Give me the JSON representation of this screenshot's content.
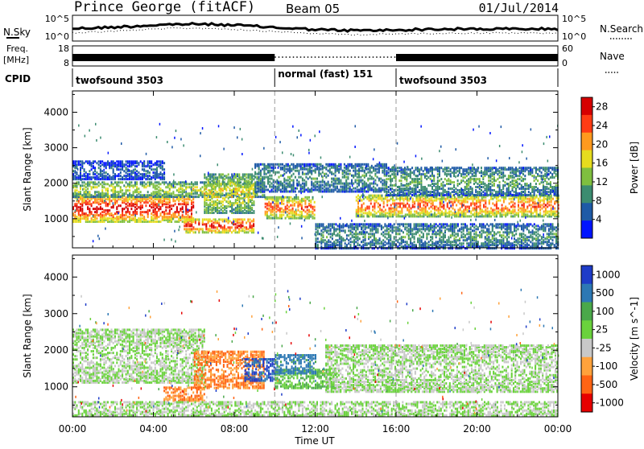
{
  "header": {
    "station": "Prince George (fitACF)",
    "beam": "Beam 05",
    "date": "01/Jul/2014"
  },
  "top_panels": {
    "nsky_label": "N.Sky",
    "nsky_ticks": [
      "10^5",
      "10^0"
    ],
    "nsearch_label": "N.Search",
    "nsearch_ticks": [
      "10^5",
      "10^0"
    ],
    "freq_label_1": "Freq.",
    "freq_label_2": "[MHz]",
    "freq_ticks": [
      "18",
      "8"
    ],
    "nave_label": "Nave",
    "nave_ticks": [
      "60",
      "0"
    ],
    "cpid_label": "CPID",
    "cpid_segments": [
      {
        "label": "twofsound 3503",
        "start_h": 0,
        "end_h": 10
      },
      {
        "label": "normal (fast) 151",
        "start_h": 10,
        "end_h": 16
      },
      {
        "label": "twofsound 3503",
        "start_h": 16,
        "end_h": 24
      }
    ]
  },
  "chart_data": [
    {
      "type": "heatmap",
      "title": "",
      "xlabel": "Time UT",
      "ylabel": "Slant Range [km]",
      "xlim": [
        0,
        24
      ],
      "ylim": [
        180,
        4600
      ],
      "x_ticks": [
        "00:00",
        "04:00",
        "08:00",
        "12:00",
        "16:00",
        "20:00",
        "00:00"
      ],
      "x_tick_hours": [
        0,
        4,
        8,
        12,
        16,
        20,
        24
      ],
      "y_ticks": [
        "1000",
        "2000",
        "3000",
        "4000"
      ],
      "y_tick_values": [
        1000,
        2000,
        3000,
        4000
      ],
      "colorbar": {
        "label": "Power [dB]",
        "ticks": [
          "4",
          "8",
          "12",
          "16",
          "20",
          "24",
          "28"
        ],
        "tick_values": [
          4,
          8,
          12,
          16,
          20,
          24,
          28
        ],
        "range": [
          0,
          30
        ],
        "colors": [
          "#0014ff",
          "#1e5aa6",
          "#3c8c70",
          "#7fbf3f",
          "#e6dc1e",
          "#ff9a1e",
          "#ff3c14",
          "#d60000"
        ]
      },
      "bands": [
        {
          "h0": 0.0,
          "h1": 6.0,
          "r0": 950,
          "r1": 1700,
          "value": 26
        },
        {
          "h0": 0.0,
          "h1": 9.5,
          "r0": 1650,
          "r1": 2100,
          "value": 14
        },
        {
          "h0": 0.0,
          "h1": 4.5,
          "r0": 2150,
          "r1": 2650,
          "value": 6
        },
        {
          "h0": 5.5,
          "h1": 9.0,
          "r0": 650,
          "r1": 1050,
          "value": 25
        },
        {
          "h0": 6.5,
          "h1": 9.0,
          "r0": 1200,
          "r1": 2300,
          "value": 16
        },
        {
          "h0": 9.5,
          "h1": 12.0,
          "r0": 1050,
          "r1": 1650,
          "value": 22
        },
        {
          "h0": 9.0,
          "h1": 15.5,
          "r0": 1800,
          "r1": 2600,
          "value": 9
        },
        {
          "h0": 14.0,
          "h1": 24.0,
          "r0": 1100,
          "r1": 1700,
          "value": 22
        },
        {
          "h0": 15.5,
          "h1": 24.0,
          "r0": 1700,
          "r1": 2500,
          "value": 10
        },
        {
          "h0": 12.0,
          "h1": 24.0,
          "r0": 200,
          "r1": 900,
          "value": 9
        }
      ]
    },
    {
      "type": "heatmap",
      "title": "",
      "xlabel": "Time UT",
      "ylabel": "Slant Range [km]",
      "xlim": [
        0,
        24
      ],
      "ylim": [
        180,
        4600
      ],
      "x_ticks": [
        "00:00",
        "04:00",
        "08:00",
        "12:00",
        "16:00",
        "20:00",
        "00:00"
      ],
      "x_tick_hours": [
        0,
        4,
        8,
        12,
        16,
        20,
        24
      ],
      "y_ticks": [
        "1000",
        "2000",
        "3000",
        "4000"
      ],
      "y_tick_values": [
        1000,
        2000,
        3000,
        4000
      ],
      "colorbar": {
        "label": "Velocity [m s^-1]",
        "ticks": [
          "1000",
          "500",
          "100",
          "25",
          "-25",
          "-100",
          "-500",
          "-1000"
        ],
        "colors": [
          "#1e3cc8",
          "#2d78b4",
          "#4aa84a",
          "#6ad23c",
          "#c8c8c8",
          "#ffa23c",
          "#ff6414",
          "#e60000"
        ]
      },
      "bands": [
        {
          "h0": 0.0,
          "h1": 6.5,
          "r0": 1150,
          "r1": 2600,
          "value": 0
        },
        {
          "h0": 6.0,
          "h1": 9.5,
          "r0": 1000,
          "r1": 2000,
          "value": -300
        },
        {
          "h0": 8.5,
          "h1": 10.0,
          "r0": 1200,
          "r1": 1800,
          "value": 800
        },
        {
          "h0": 10.0,
          "h1": 13.0,
          "r0": 1000,
          "r1": 1500,
          "value": 60
        },
        {
          "h0": 10.0,
          "h1": 12.0,
          "r0": 1400,
          "r1": 1900,
          "value": 400
        },
        {
          "h0": 4.5,
          "h1": 6.5,
          "r0": 650,
          "r1": 1050,
          "value": -300
        },
        {
          "h0": 12.5,
          "h1": 24.0,
          "r0": 900,
          "r1": 2200,
          "value": 0
        },
        {
          "h0": 0.0,
          "h1": 24.0,
          "r0": 250,
          "r1": 650,
          "value": 0
        }
      ]
    }
  ]
}
